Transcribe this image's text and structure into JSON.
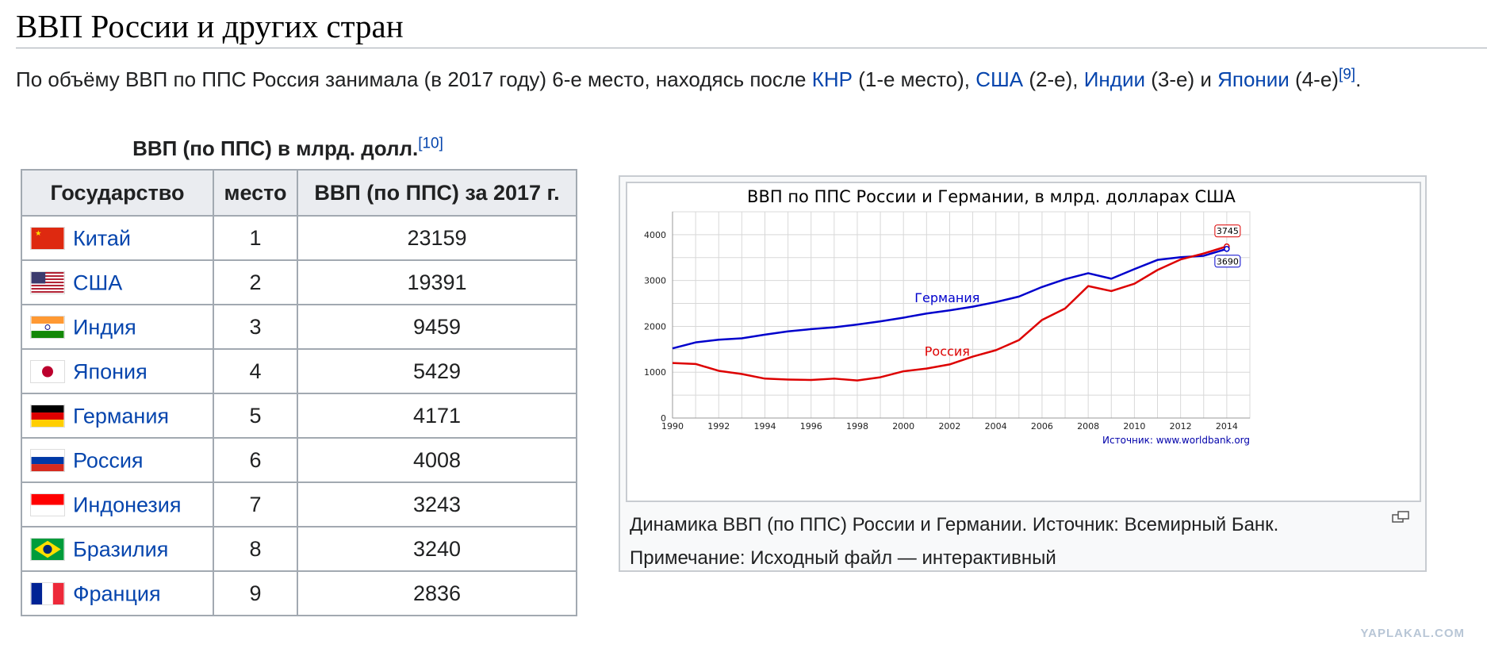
{
  "heading": "ВВП России и других стран",
  "intro": {
    "t1": "По объёму ВВП по ППС Россия занимала (в 2017 году) 6-е место, находясь после ",
    "l1": "КНР",
    "t2": " (1-е место), ",
    "l2": "США",
    "t3": " (2-е), ",
    "l3": "Индии",
    "t4": " (3-е) и ",
    "l4": "Японии",
    "t5": " (4-е)",
    "ref": "[9]",
    "t6": "."
  },
  "table": {
    "caption": "ВВП (по ППС) в млрд. долл.",
    "caption_ref": "[10]",
    "headers": [
      "Государство",
      "место",
      "ВВП (по ППС) за 2017 г."
    ],
    "rows": [
      {
        "country": "Китай",
        "rank": "1",
        "gdp": "23159",
        "flag": "china-flag"
      },
      {
        "country": "США",
        "rank": "2",
        "gdp": "19391",
        "flag": "usa-flag"
      },
      {
        "country": "Индия",
        "rank": "3",
        "gdp": "9459",
        "flag": "india-flag"
      },
      {
        "country": "Япония",
        "rank": "4",
        "gdp": "5429",
        "flag": "japan-flag"
      },
      {
        "country": "Германия",
        "rank": "5",
        "gdp": "4171",
        "flag": "germany-flag"
      },
      {
        "country": "Россия",
        "rank": "6",
        "gdp": "4008",
        "flag": "russia-flag"
      },
      {
        "country": "Индонезия",
        "rank": "7",
        "gdp": "3243",
        "flag": "indonesia-flag"
      },
      {
        "country": "Бразилия",
        "rank": "8",
        "gdp": "3240",
        "flag": "brazil-flag"
      },
      {
        "country": "Франция",
        "rank": "9",
        "gdp": "2836",
        "flag": "france-flag"
      }
    ]
  },
  "figure": {
    "caption_line1": "Динамика ВВП (по ППС) России и Германии. Источник: Всемирный Банк.",
    "caption_line2": "Примечание: Исходный файл — интерактивный"
  },
  "watermark": "YAPLAKAL.COM",
  "chart_data": {
    "type": "line",
    "title": "ВВП по ППС России и Германии, в млрд. долларах США",
    "source": "Источник: www.worldbank.org",
    "x": [
      1990,
      1991,
      1992,
      1993,
      1994,
      1995,
      1996,
      1997,
      1998,
      1999,
      2000,
      2001,
      2002,
      2003,
      2004,
      2005,
      2006,
      2007,
      2008,
      2009,
      2010,
      2011,
      2012,
      2013,
      2014
    ],
    "xticks": [
      1990,
      1992,
      1994,
      1996,
      1998,
      2000,
      2002,
      2004,
      2006,
      2008,
      2010,
      2012,
      2014
    ],
    "yticks": [
      0,
      1000,
      2000,
      3000,
      4000
    ],
    "xlim": [
      1990,
      2015
    ],
    "ylim": [
      0,
      4500
    ],
    "grid": true,
    "series": [
      {
        "name": "Германия",
        "color": "#0000cc",
        "values": [
          1520,
          1650,
          1710,
          1740,
          1820,
          1890,
          1940,
          1980,
          2040,
          2110,
          2190,
          2280,
          2350,
          2430,
          2530,
          2650,
          2860,
          3030,
          3160,
          3040,
          3250,
          3450,
          3510,
          3540,
          3690
        ]
      },
      {
        "name": "Россия",
        "color": "#dd0000",
        "values": [
          1200,
          1180,
          1030,
          960,
          860,
          840,
          830,
          860,
          820,
          890,
          1020,
          1080,
          1170,
          1340,
          1480,
          1700,
          2140,
          2390,
          2880,
          2770,
          2930,
          3230,
          3460,
          3590,
          3745
        ]
      }
    ],
    "end_labels": [
      "3745",
      "3690"
    ]
  }
}
